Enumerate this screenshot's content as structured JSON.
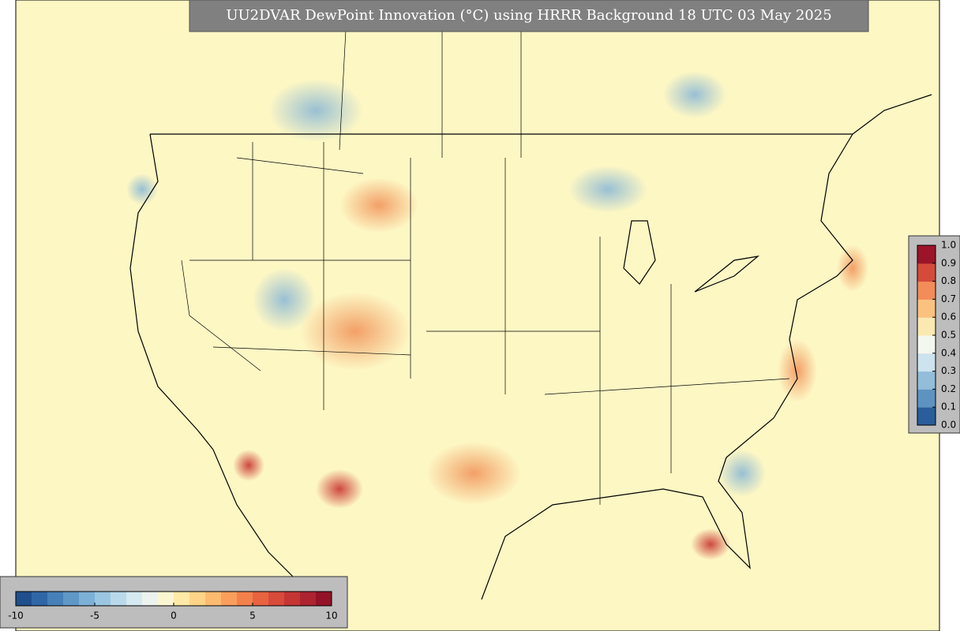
{
  "title": "UU2DVAR DewPoint Innovation (°C) using HRRR Background 18 UTC 03 May 2025",
  "colorbars": {
    "horizontal": {
      "lim": [
        -10,
        10
      ],
      "ticks": [
        -10,
        -5,
        0,
        5,
        10
      ],
      "colors": [
        "#1f4f8c",
        "#2f67a6",
        "#4680b8",
        "#5f97c7",
        "#7db0d5",
        "#9bc6e1",
        "#b9d9ea",
        "#d5e9f0",
        "#ecf3ee",
        "#fbf6d2",
        "#fee9a6",
        "#fdd488",
        "#fcbb6f",
        "#f99f5b",
        "#f3814b",
        "#e86340",
        "#d84a3a",
        "#c53533",
        "#ad2330",
        "#931227"
      ]
    },
    "vertical": {
      "lim": [
        0,
        1
      ],
      "ticks": [
        {
          "value": 0,
          "label": "0.0"
        },
        0.1,
        0.2,
        0.3,
        0.4,
        0.5,
        0.6,
        0.7,
        0.8,
        0.9,
        {
          "value": 1,
          "label": "1.0"
        }
      ],
      "colors": [
        "#2a5d9a",
        "#5e93c1",
        "#93bdd9",
        "#cde3ee",
        "#f4f6f0",
        "#fbe9b2",
        "#fbc27f",
        "#f28c58",
        "#d44b3b",
        "#9c1429"
      ]
    }
  }
}
